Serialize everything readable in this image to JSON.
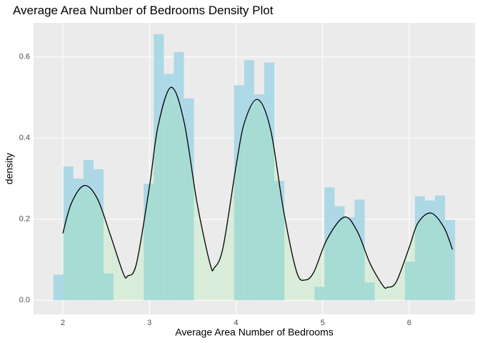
{
  "chart_data": {
    "type": "histogram",
    "title": "Average Area Number of Bedrooms Density Plot",
    "xlabel": "Average Area Number of Bedrooms",
    "ylabel": "density",
    "bins": [
      1.89,
      2.006,
      2.122,
      2.238,
      2.354,
      2.47,
      2.586,
      2.702,
      2.818,
      2.934,
      3.05,
      3.166,
      3.282,
      3.398,
      3.514,
      3.63,
      3.746,
      3.862,
      3.978,
      4.094,
      4.21,
      4.326,
      4.442,
      4.558,
      4.674,
      4.79,
      4.906,
      5.022,
      5.138,
      5.254,
      5.37,
      5.486,
      5.602,
      5.718,
      5.834,
      5.95,
      6.066,
      6.182,
      6.298,
      6.414,
      6.53
    ],
    "values": [
      0.063,
      0.33,
      0.3,
      0.346,
      0.323,
      0.066,
      0,
      0,
      0,
      0.287,
      0.656,
      0.558,
      0.612,
      0.498,
      0,
      0,
      0,
      0,
      0.53,
      0.592,
      0.508,
      0.586,
      0.294,
      0,
      0,
      0,
      0.033,
      0.278,
      0.232,
      0.205,
      0.248,
      0.044,
      0,
      0,
      0,
      0.095,
      0.256,
      0.246,
      0.258,
      0.198
    ],
    "color": "#add8e6",
    "density": {
      "color": "#000000",
      "fill": "#90ee90",
      "x": [
        2.0,
        2.1,
        2.25,
        2.4,
        2.55,
        2.7,
        2.75,
        2.85,
        3.0,
        3.1,
        3.25,
        3.4,
        3.55,
        3.7,
        3.75,
        3.85,
        4.0,
        4.1,
        4.25,
        4.4,
        4.55,
        4.7,
        4.8,
        4.9,
        5.05,
        5.25,
        5.4,
        5.55,
        5.7,
        5.75,
        5.85,
        6.0,
        6.1,
        6.25,
        6.4,
        6.5
      ],
      "y": [
        0.165,
        0.24,
        0.283,
        0.25,
        0.16,
        0.065,
        0.06,
        0.09,
        0.28,
        0.43,
        0.525,
        0.44,
        0.24,
        0.09,
        0.08,
        0.13,
        0.33,
        0.44,
        0.495,
        0.42,
        0.22,
        0.07,
        0.05,
        0.07,
        0.15,
        0.205,
        0.17,
        0.09,
        0.035,
        0.032,
        0.045,
        0.13,
        0.19,
        0.215,
        0.18,
        0.125
      ]
    },
    "xlim": [
      1.662,
      6.76
    ],
    "ylim": [
      -0.035,
      0.684
    ],
    "xticks": [
      2,
      3,
      4,
      5,
      6
    ],
    "yticks": [
      {
        "value": 0,
        "label": "0.0"
      },
      {
        "value": 0.2,
        "label": "0.2"
      },
      {
        "value": 0.4,
        "label": "0.4"
      },
      {
        "value": 0.6,
        "label": "0.6"
      }
    ],
    "grid": true
  }
}
